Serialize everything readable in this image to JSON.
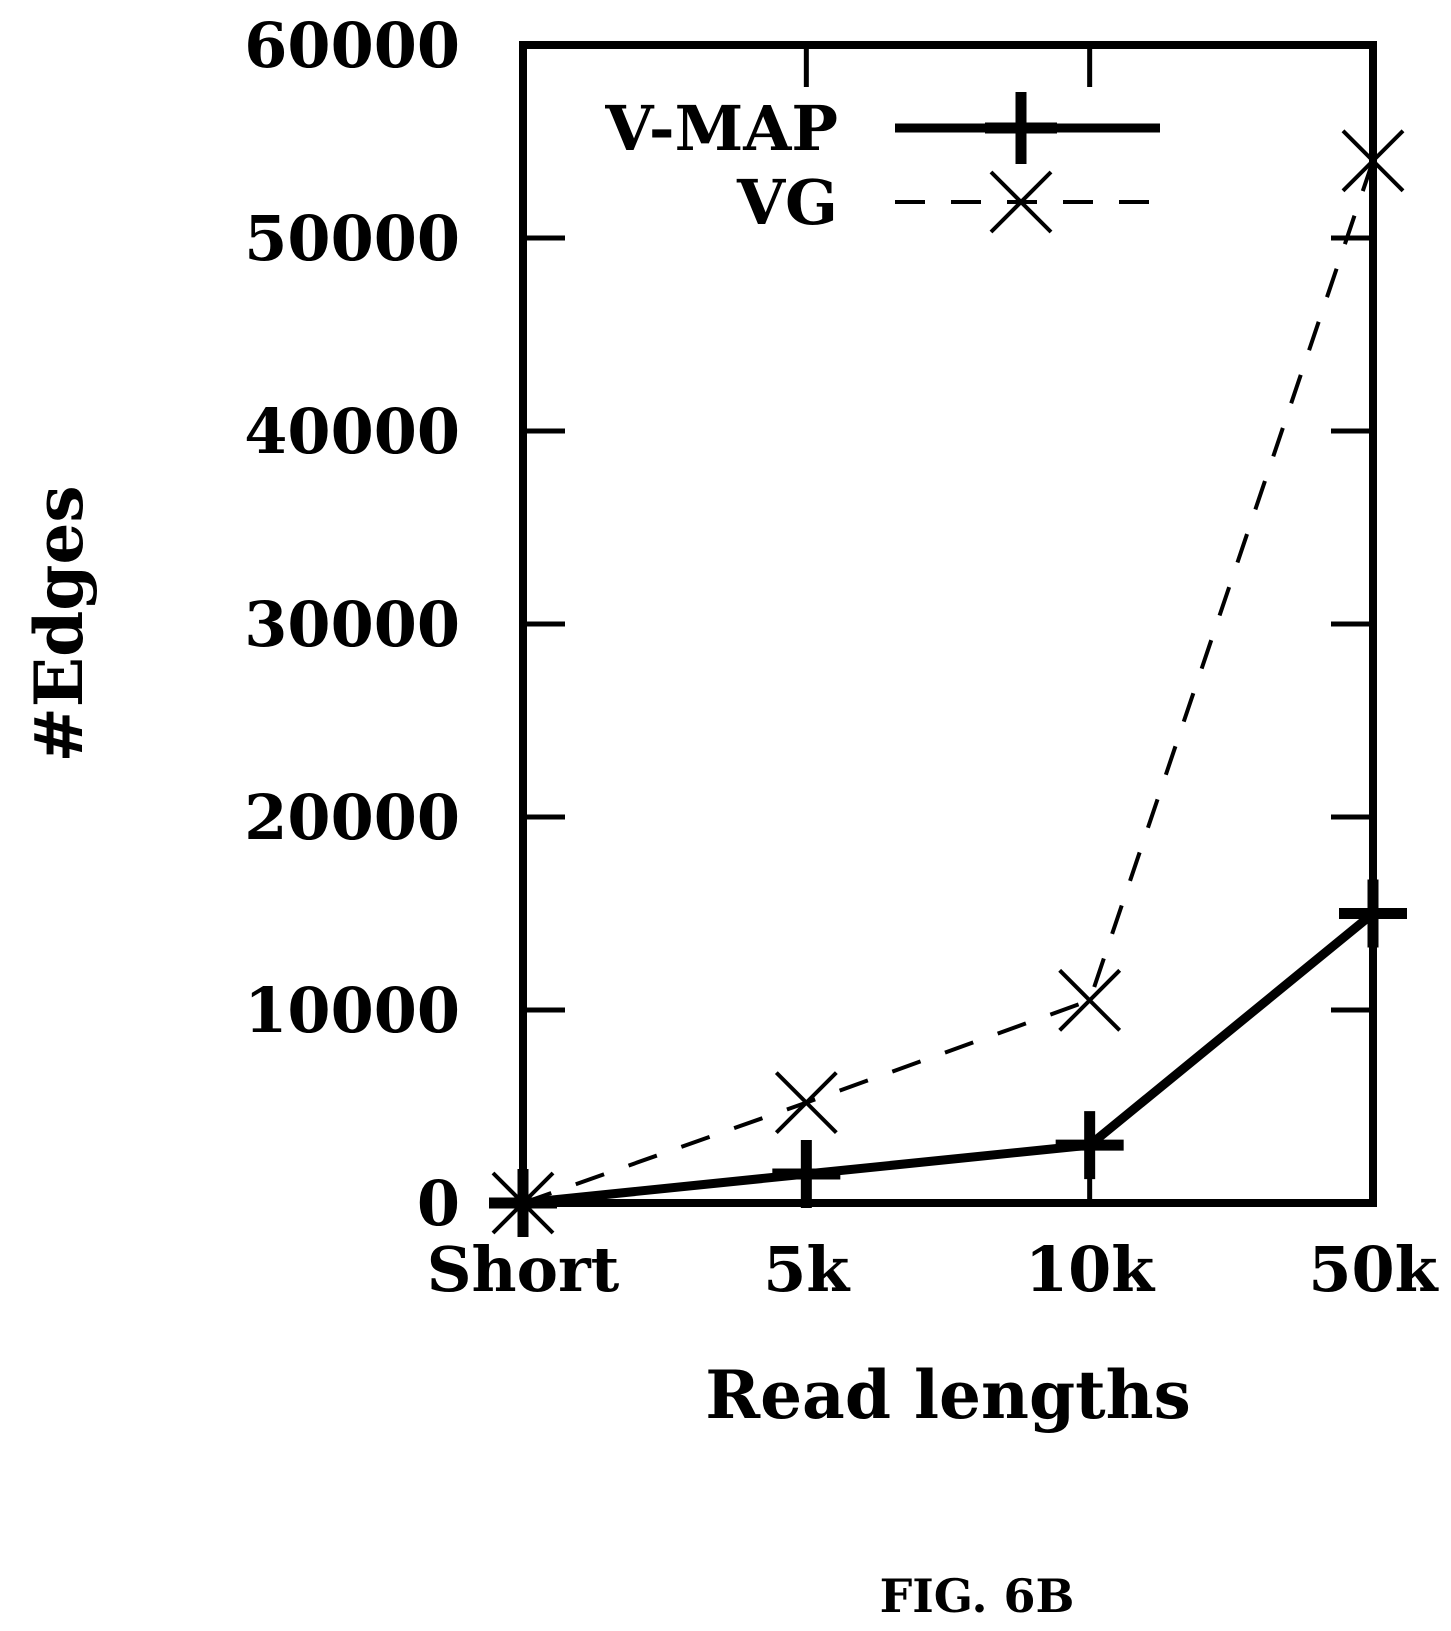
{
  "figure_label": "FIG. 6B",
  "chart_data": {
    "type": "line",
    "categories": [
      "Short",
      "5k",
      "10k",
      "50k"
    ],
    "series": [
      {
        "name": "V-MAP",
        "values": [
          0,
          1500,
          3000,
          15000
        ],
        "style": "solid",
        "marker": "plus",
        "color": "#000000"
      },
      {
        "name": "VG",
        "values": [
          0,
          5200,
          10500,
          54000
        ],
        "style": "dashed",
        "marker": "cross",
        "color": "#000000"
      }
    ],
    "xlabel": "Read lengths",
    "ylabel": "#Edges",
    "ylim": [
      0,
      60000
    ],
    "yticks": [
      0,
      10000,
      20000,
      30000,
      40000,
      50000,
      60000
    ],
    "ytick_labels": [
      "0",
      "10000",
      "20000",
      "30000",
      "40000",
      "50000",
      "60000"
    ],
    "grid": false,
    "legend_position": "top"
  }
}
